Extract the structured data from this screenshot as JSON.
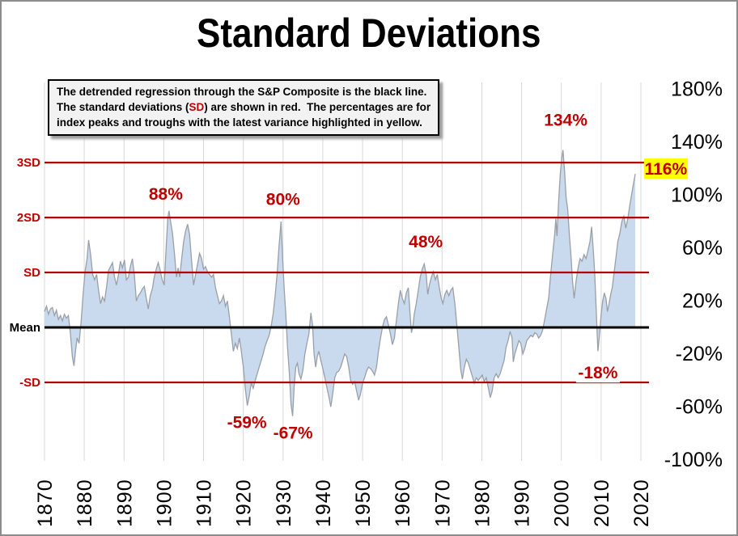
{
  "title": "Standard Deviations",
  "note": {
    "line1": "The detrended regression through the S&P Composite is the black line.",
    "line2_pre": "The standard deviations (",
    "line2_sd": "SD",
    "line2_post": ") are shown in red.  The percentages are for",
    "line3": "index peaks and troughs with the latest variance highlighted in yellow."
  },
  "colors": {
    "accent_red": "#C00000",
    "line_red": "#B40000",
    "mean_black": "#000000",
    "area_fill": "#C9D9EE",
    "series_line": "#9AA0A8",
    "gridline": "#D8D8D8",
    "note_bg": "#F2F2F2",
    "highlight_yellow": "#FFFF00",
    "annotation_bg_white": "#FFFFFF",
    "border_gray": "#8C8C8C"
  },
  "chart_data": {
    "type": "area",
    "title": "Standard Deviations",
    "xlabel": "",
    "ylabel": "",
    "xlim": [
      1870,
      2021.5
    ],
    "ylim": [
      -100,
      185
    ],
    "grid": "vertical-only",
    "x_ticks": [
      1870,
      1880,
      1890,
      1900,
      1910,
      1920,
      1930,
      1940,
      1950,
      1960,
      1970,
      1980,
      1990,
      2000,
      2010,
      2020
    ],
    "y_ticks": [
      {
        "label": "180%",
        "value": 180
      },
      {
        "label": "140%",
        "value": 140
      },
      {
        "label": "100%",
        "value": 100
      },
      {
        "label": "60%",
        "value": 60
      },
      {
        "label": "20%",
        "value": 20
      },
      {
        "label": "-20%",
        "value": -20
      },
      {
        "label": "-60%",
        "value": -60
      },
      {
        "label": "-100%",
        "value": -100
      }
    ],
    "sd_pct": 41.5,
    "ref_lines": [
      {
        "name": "3SD",
        "value": 124.5,
        "color": "red"
      },
      {
        "name": "2SD",
        "value": 83,
        "color": "red"
      },
      {
        "name": "SD",
        "value": 41.5,
        "color": "red"
      },
      {
        "name": "Mean",
        "value": 0,
        "color": "black"
      },
      {
        "name": "-SD",
        "value": -41.5,
        "color": "red"
      }
    ],
    "annotations": [
      {
        "text": "88%",
        "year": 1900.5,
        "pct": 101,
        "bg": "none"
      },
      {
        "text": "80%",
        "year": 1930.0,
        "pct": 97,
        "bg": "none"
      },
      {
        "text": "48%",
        "year": 1965.9,
        "pct": 65,
        "bg": "none"
      },
      {
        "text": "134%",
        "year": 2001.1,
        "pct": 157,
        "bg": "none"
      },
      {
        "text": "116%",
        "year": 2026.3,
        "pct": 120,
        "bg": "yellow"
      },
      {
        "text": "-18%",
        "year": 2009.2,
        "pct": -34,
        "bg": "white"
      },
      {
        "text": "-59%",
        "year": 1920.9,
        "pct": -71.5,
        "bg": "none"
      },
      {
        "text": "-67%",
        "year": 1932.5,
        "pct": -79.5,
        "bg": "none"
      }
    ],
    "series": {
      "name": "Detrended S&P Composite variance from regression",
      "points": [
        [
          1870,
          12
        ],
        [
          1870.5,
          16
        ],
        [
          1871,
          10
        ],
        [
          1871.5,
          14
        ],
        [
          1872,
          15
        ],
        [
          1872.5,
          9
        ],
        [
          1873,
          13
        ],
        [
          1873.5,
          6
        ],
        [
          1874,
          9
        ],
        [
          1874.5,
          5
        ],
        [
          1875,
          10
        ],
        [
          1875.5,
          7
        ],
        [
          1876,
          9
        ],
        [
          1876.5,
          -4
        ],
        [
          1877,
          -22
        ],
        [
          1877.4,
          -29
        ],
        [
          1877.8,
          -18
        ],
        [
          1878.2,
          -8
        ],
        [
          1878.7,
          -12
        ],
        [
          1879.2,
          4
        ],
        [
          1879.7,
          25
        ],
        [
          1880.2,
          42
        ],
        [
          1880.7,
          52
        ],
        [
          1881.1,
          66
        ],
        [
          1881.6,
          55
        ],
        [
          1882.1,
          40
        ],
        [
          1882.6,
          36
        ],
        [
          1883.1,
          40
        ],
        [
          1883.6,
          28
        ],
        [
          1884.1,
          18
        ],
        [
          1884.6,
          23
        ],
        [
          1885.1,
          20
        ],
        [
          1885.6,
          30
        ],
        [
          1886.1,
          43
        ],
        [
          1886.6,
          46
        ],
        [
          1887.1,
          49
        ],
        [
          1887.6,
          38
        ],
        [
          1888.1,
          32
        ],
        [
          1888.6,
          40
        ],
        [
          1889.1,
          50
        ],
        [
          1889.6,
          45
        ],
        [
          1890.1,
          51
        ],
        [
          1890.6,
          36
        ],
        [
          1891.1,
          38
        ],
        [
          1891.6,
          46
        ],
        [
          1892.1,
          52
        ],
        [
          1892.6,
          40
        ],
        [
          1893.1,
          20
        ],
        [
          1893.6,
          24
        ],
        [
          1894.1,
          26
        ],
        [
          1894.6,
          29
        ],
        [
          1895.1,
          31
        ],
        [
          1895.6,
          22
        ],
        [
          1896.1,
          14
        ],
        [
          1896.6,
          24
        ],
        [
          1897.1,
          29
        ],
        [
          1897.6,
          38
        ],
        [
          1898.1,
          44
        ],
        [
          1898.6,
          49
        ],
        [
          1899.1,
          43
        ],
        [
          1899.6,
          36
        ],
        [
          1900.1,
          32
        ],
        [
          1900.6,
          60
        ],
        [
          1901,
          82
        ],
        [
          1901.3,
          88
        ],
        [
          1901.7,
          80
        ],
        [
          1902.2,
          71
        ],
        [
          1902.7,
          55
        ],
        [
          1903.2,
          38
        ],
        [
          1903.6,
          45
        ],
        [
          1904,
          38
        ],
        [
          1904.5,
          52
        ],
        [
          1905,
          65
        ],
        [
          1905.5,
          73
        ],
        [
          1906,
          78
        ],
        [
          1906.5,
          70
        ],
        [
          1907,
          50
        ],
        [
          1907.5,
          32
        ],
        [
          1908,
          40
        ],
        [
          1908.5,
          48
        ],
        [
          1909,
          56
        ],
        [
          1909.5,
          52
        ],
        [
          1910,
          44
        ],
        [
          1910.5,
          46
        ],
        [
          1911,
          42
        ],
        [
          1911.5,
          40
        ],
        [
          1912,
          38
        ],
        [
          1912.5,
          40
        ],
        [
          1913,
          30
        ],
        [
          1913.5,
          24
        ],
        [
          1914,
          18
        ],
        [
          1914.5,
          20
        ],
        [
          1915,
          24
        ],
        [
          1915.5,
          16
        ],
        [
          1916,
          20
        ],
        [
          1916.5,
          8
        ],
        [
          1917,
          -5
        ],
        [
          1917.5,
          -18
        ],
        [
          1918,
          -12
        ],
        [
          1918.5,
          -16
        ],
        [
          1919,
          -8
        ],
        [
          1919.5,
          -18
        ],
        [
          1920,
          -30
        ],
        [
          1920.5,
          -46
        ],
        [
          1921,
          -59
        ],
        [
          1921.5,
          -52
        ],
        [
          1922,
          -42
        ],
        [
          1922.5,
          -46
        ],
        [
          1923,
          -40
        ],
        [
          1923.5,
          -35
        ],
        [
          1924,
          -30
        ],
        [
          1924.5,
          -25
        ],
        [
          1925,
          -20
        ],
        [
          1925.5,
          -14
        ],
        [
          1926,
          -10
        ],
        [
          1926.5,
          -6
        ],
        [
          1927,
          1
        ],
        [
          1927.5,
          10
        ],
        [
          1928,
          24
        ],
        [
          1928.5,
          40
        ],
        [
          1929,
          62
        ],
        [
          1929.5,
          80
        ],
        [
          1929.9,
          52
        ],
        [
          1930.3,
          28
        ],
        [
          1930.7,
          10
        ],
        [
          1931.1,
          -14
        ],
        [
          1931.6,
          -36
        ],
        [
          1932,
          -58
        ],
        [
          1932.4,
          -67
        ],
        [
          1932.8,
          -44
        ],
        [
          1933.2,
          -30
        ],
        [
          1933.6,
          -27
        ],
        [
          1934,
          -35
        ],
        [
          1934.5,
          -39
        ],
        [
          1935,
          -32
        ],
        [
          1935.5,
          -20
        ],
        [
          1936,
          -12
        ],
        [
          1936.5,
          -5
        ],
        [
          1937,
          11
        ],
        [
          1937.4,
          2
        ],
        [
          1937.8,
          -20
        ],
        [
          1938.2,
          -30
        ],
        [
          1938.6,
          -22
        ],
        [
          1939,
          -18
        ],
        [
          1939.5,
          -25
        ],
        [
          1940,
          -31
        ],
        [
          1940.5,
          -38
        ],
        [
          1941,
          -45
        ],
        [
          1941.5,
          -52
        ],
        [
          1942,
          -60
        ],
        [
          1942.5,
          -50
        ],
        [
          1943,
          -38
        ],
        [
          1943.5,
          -34
        ],
        [
          1944,
          -33
        ],
        [
          1944.5,
          -30
        ],
        [
          1945,
          -25
        ],
        [
          1945.5,
          -20
        ],
        [
          1946,
          -22
        ],
        [
          1946.5,
          -30
        ],
        [
          1947,
          -40
        ],
        [
          1947.5,
          -43
        ],
        [
          1948,
          -41
        ],
        [
          1948.5,
          -48
        ],
        [
          1949,
          -55
        ],
        [
          1949.5,
          -50
        ],
        [
          1950,
          -42
        ],
        [
          1950.5,
          -38
        ],
        [
          1951,
          -33
        ],
        [
          1951.5,
          -30
        ],
        [
          1952,
          -31
        ],
        [
          1952.5,
          -33
        ],
        [
          1953,
          -36
        ],
        [
          1953.5,
          -30
        ],
        [
          1954,
          -18
        ],
        [
          1954.5,
          -8
        ],
        [
          1955,
          0
        ],
        [
          1955.5,
          6
        ],
        [
          1956,
          8
        ],
        [
          1956.5,
          2
        ],
        [
          1957,
          -5
        ],
        [
          1957.5,
          -13
        ],
        [
          1958,
          -8
        ],
        [
          1958.5,
          5
        ],
        [
          1959,
          18
        ],
        [
          1959.5,
          28
        ],
        [
          1960,
          22
        ],
        [
          1960.5,
          18
        ],
        [
          1961,
          26
        ],
        [
          1961.5,
          30
        ],
        [
          1962,
          8
        ],
        [
          1962.3,
          -4
        ],
        [
          1962.7,
          2
        ],
        [
          1963,
          10
        ],
        [
          1963.5,
          18
        ],
        [
          1964,
          28
        ],
        [
          1964.5,
          38
        ],
        [
          1965,
          44
        ],
        [
          1965.5,
          48
        ],
        [
          1966,
          40
        ],
        [
          1966.4,
          25
        ],
        [
          1966.8,
          32
        ],
        [
          1967.3,
          38
        ],
        [
          1967.8,
          42
        ],
        [
          1968.3,
          36
        ],
        [
          1968.8,
          40
        ],
        [
          1969.3,
          30
        ],
        [
          1969.8,
          22
        ],
        [
          1970.2,
          18
        ],
        [
          1970.7,
          25
        ],
        [
          1971.2,
          28
        ],
        [
          1971.7,
          24
        ],
        [
          1972.2,
          28
        ],
        [
          1972.7,
          30
        ],
        [
          1973.2,
          18
        ],
        [
          1973.7,
          2
        ],
        [
          1974.2,
          -15
        ],
        [
          1974.7,
          -32
        ],
        [
          1975.1,
          -39
        ],
        [
          1975.6,
          -30
        ],
        [
          1976.1,
          -24
        ],
        [
          1976.6,
          -27
        ],
        [
          1977.1,
          -32
        ],
        [
          1977.6,
          -37
        ],
        [
          1978.1,
          -42
        ],
        [
          1978.6,
          -38
        ],
        [
          1979.1,
          -40
        ],
        [
          1979.6,
          -38
        ],
        [
          1980.1,
          -36
        ],
        [
          1980.6,
          -41
        ],
        [
          1981.1,
          -38
        ],
        [
          1981.6,
          -45
        ],
        [
          1982.1,
          -53
        ],
        [
          1982.6,
          -48
        ],
        [
          1983.1,
          -38
        ],
        [
          1983.6,
          -35
        ],
        [
          1984.1,
          -38
        ],
        [
          1984.6,
          -35
        ],
        [
          1985.1,
          -30
        ],
        [
          1985.6,
          -25
        ],
        [
          1986.1,
          -15
        ],
        [
          1986.6,
          -10
        ],
        [
          1987.1,
          -3
        ],
        [
          1987.6,
          -8
        ],
        [
          1987.9,
          -26
        ],
        [
          1988.3,
          -20
        ],
        [
          1988.8,
          -15
        ],
        [
          1989.3,
          -10
        ],
        [
          1989.8,
          -12
        ],
        [
          1990.3,
          -20
        ],
        [
          1990.8,
          -16
        ],
        [
          1991.3,
          -10
        ],
        [
          1991.8,
          -8
        ],
        [
          1992.3,
          -6
        ],
        [
          1992.8,
          -7
        ],
        [
          1993.3,
          -4
        ],
        [
          1993.8,
          -5
        ],
        [
          1994.3,
          -8
        ],
        [
          1994.8,
          -6
        ],
        [
          1995.3,
          -2
        ],
        [
          1995.8,
          6
        ],
        [
          1996.3,
          14
        ],
        [
          1996.8,
          22
        ],
        [
          1997.3,
          40
        ],
        [
          1997.8,
          55
        ],
        [
          1998.3,
          70
        ],
        [
          1998.6,
          82
        ],
        [
          1998.9,
          69
        ],
        [
          1999.3,
          95
        ],
        [
          1999.7,
          115
        ],
        [
          2000.1,
          128
        ],
        [
          2000.4,
          134
        ],
        [
          2000.8,
          118
        ],
        [
          2001.2,
          98
        ],
        [
          2001.6,
          89
        ],
        [
          2002,
          70
        ],
        [
          2002.4,
          55
        ],
        [
          2002.8,
          35
        ],
        [
          2003.2,
          22
        ],
        [
          2003.7,
          35
        ],
        [
          2004.2,
          45
        ],
        [
          2004.7,
          52
        ],
        [
          2005.2,
          50
        ],
        [
          2005.7,
          55
        ],
        [
          2006.2,
          52
        ],
        [
          2006.7,
          58
        ],
        [
          2007.2,
          65
        ],
        [
          2007.6,
          76
        ],
        [
          2008,
          60
        ],
        [
          2008.4,
          40
        ],
        [
          2008.8,
          10
        ],
        [
          2009.2,
          -18
        ],
        [
          2009.6,
          -5
        ],
        [
          2010,
          10
        ],
        [
          2010.4,
          20
        ],
        [
          2010.8,
          26
        ],
        [
          2011.2,
          22
        ],
        [
          2011.6,
          12
        ],
        [
          2012,
          18
        ],
        [
          2012.4,
          25
        ],
        [
          2012.8,
          30
        ],
        [
          2013.2,
          40
        ],
        [
          2013.7,
          52
        ],
        [
          2014.2,
          65
        ],
        [
          2014.7,
          71
        ],
        [
          2015.2,
          80
        ],
        [
          2015.7,
          84
        ],
        [
          2016.2,
          75
        ],
        [
          2016.7,
          82
        ],
        [
          2017.2,
          92
        ],
        [
          2017.7,
          101
        ],
        [
          2018.2,
          110
        ],
        [
          2018.6,
          116
        ]
      ]
    }
  }
}
